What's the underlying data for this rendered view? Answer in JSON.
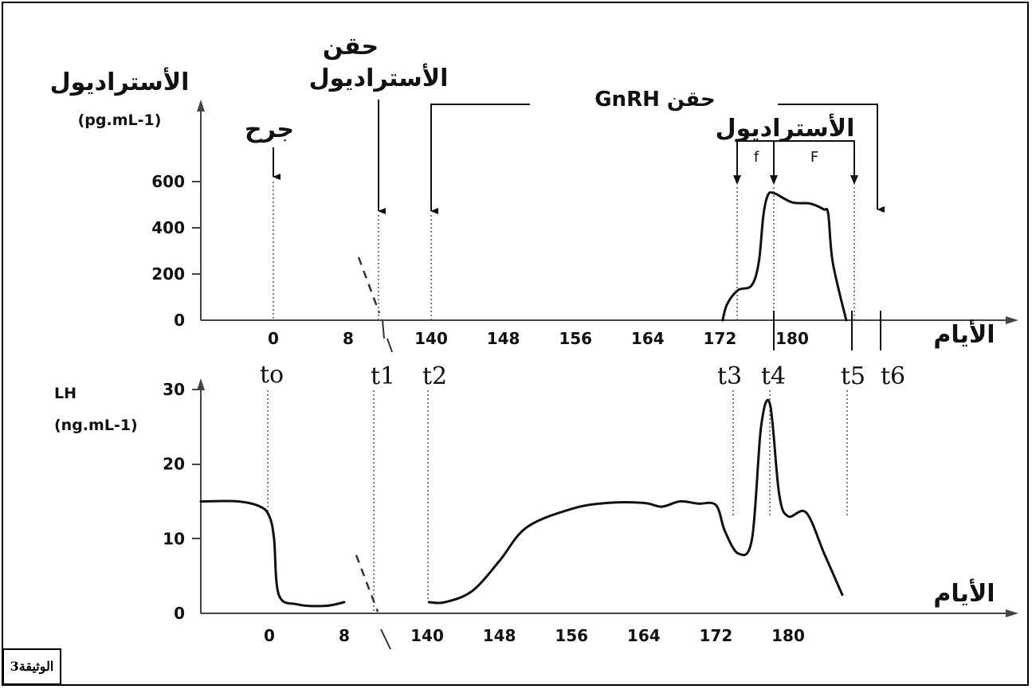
{
  "document_label": "الوثيقة3",
  "chart_data": [
    {
      "type": "line",
      "ylabel": "الأستراديول",
      "yunit": "(pg.mL-1)",
      "xlabel": "الأيام",
      "x_ticks": [
        "0",
        "8",
        "140",
        "148",
        "156",
        "164",
        "172",
        "180"
      ],
      "y_ticks": [
        "0",
        "200",
        "400",
        "600"
      ],
      "ylim": [
        0,
        600
      ],
      "series": [
        {
          "x": [
            172.3,
            172.8,
            174.0,
            175.5,
            176.3,
            176.8,
            177.3,
            178.0,
            180.0,
            182.0,
            183.5,
            184.0,
            184.5,
            186.0
          ],
          "y": [
            0,
            70,
            130,
            150,
            250,
            450,
            540,
            550,
            510,
            505,
            480,
            460,
            250,
            0
          ]
        }
      ],
      "annotations": {
        "surgery": "جرح",
        "estradiol_injection_line1": "حقن",
        "estradiol_injection_line2": "الأستراديول",
        "gnrh_injection": "حقن GnRH",
        "estradiol_level": "الأستراديول",
        "phase_f": "f",
        "phase_F": "F"
      },
      "time_markers": [
        "to",
        "t1",
        "t2",
        "t3",
        "t4",
        "t5",
        "t6"
      ]
    },
    {
      "type": "line",
      "ylabel": "LH",
      "yunit": "(ng.mL-1)",
      "xlabel": "الأيام",
      "x_ticks": [
        "0",
        "8",
        "140",
        "148",
        "156",
        "164",
        "172",
        "180"
      ],
      "y_ticks": [
        "0",
        "10",
        "20",
        "30"
      ],
      "ylim": [
        0,
        30
      ],
      "series": [
        {
          "x": [
            -9,
            -4,
            -1,
            0,
            0.5,
            1,
            3,
            6,
            8
          ],
          "y": [
            15,
            15,
            14.3,
            13,
            10,
            2.5,
            1.2,
            1.0,
            1.5
          ]
        },
        {
          "x": [
            140.2,
            142,
            145,
            148,
            151,
            156,
            160,
            164,
            166,
            168,
            170,
            172,
            173,
            174.5,
            176,
            177,
            178,
            179,
            180,
            182,
            184,
            186
          ],
          "y": [
            1.5,
            1.5,
            3,
            7,
            11.5,
            14,
            14.8,
            14.8,
            14.3,
            15,
            14.7,
            14.5,
            11,
            8,
            10,
            25,
            28,
            16,
            13,
            13.5,
            8,
            2.5
          ]
        }
      ]
    }
  ]
}
